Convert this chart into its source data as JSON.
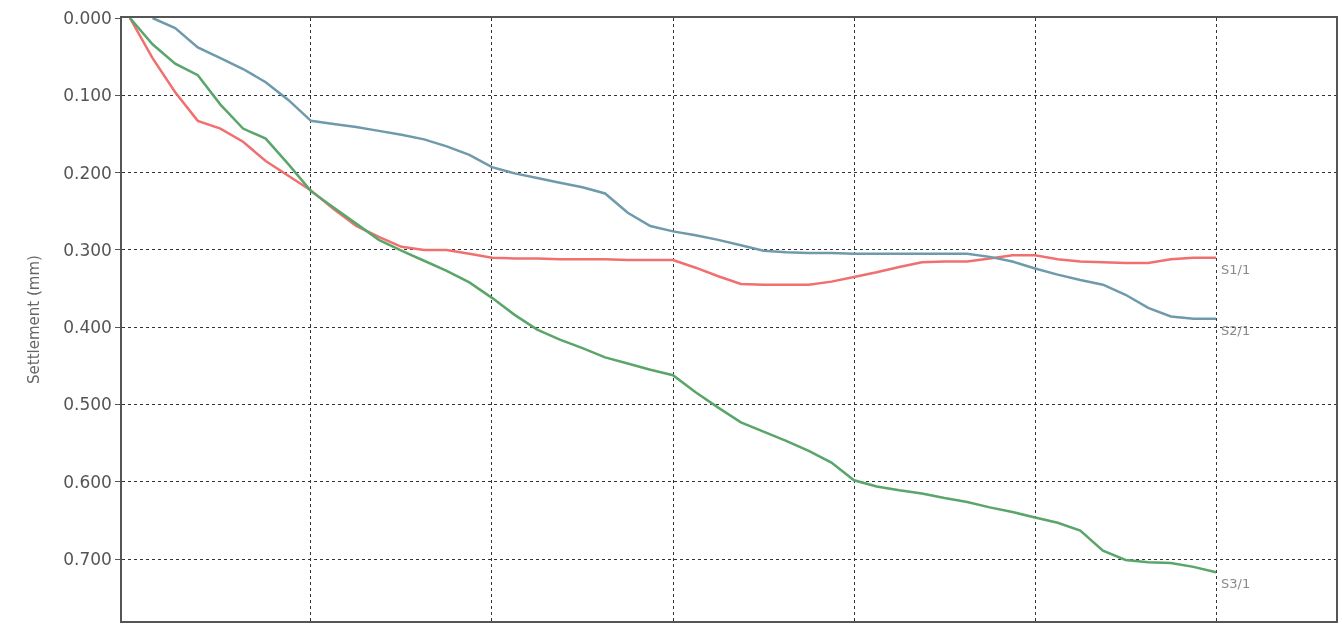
{
  "chart_data": {
    "type": "line",
    "ylabel": "Settlement (mm)",
    "categories": [
      null,
      null,
      null,
      null,
      null,
      null,
      null,
      null,
      null,
      null,
      null,
      null,
      null,
      null,
      null,
      null,
      null,
      null,
      null,
      null,
      null,
      null,
      null,
      null,
      null,
      null,
      null,
      null,
      null,
      null,
      null,
      null,
      null,
      null,
      null,
      null,
      null,
      null,
      null,
      null,
      null,
      null,
      null,
      null,
      null,
      null,
      null,
      null,
      null
    ],
    "series": [
      {
        "name": "S1/1",
        "color": "#f07070",
        "values": [
          0,
          0.052,
          0.096,
          0.133,
          0.143,
          0.16,
          0.185,
          0.204,
          0.223,
          0.247,
          0.269,
          0.283,
          0.296,
          0.3,
          0.3,
          0.305,
          0.31,
          0.311,
          0.311,
          0.312,
          0.312,
          0.312,
          0.313,
          0.313,
          0.313,
          0.323,
          0.334,
          0.344,
          0.345,
          0.345,
          0.345,
          0.341,
          0.335,
          0.329,
          0.322,
          0.316,
          0.315,
          0.315,
          0.311,
          0.307,
          0.307,
          0.312,
          0.315,
          0.316,
          0.317,
          0.317,
          0.312,
          0.31,
          0.31
        ]
      },
      {
        "name": "S2/1",
        "color": "#6f9aab",
        "values": [
          null,
          0,
          0.013,
          0.038,
          0.052,
          0.066,
          0.083,
          0.106,
          0.133,
          0.137,
          0.141,
          0.146,
          0.151,
          0.157,
          0.166,
          0.177,
          0.193,
          0.201,
          0.207,
          0.213,
          0.219,
          0.227,
          0.252,
          0.269,
          0.276,
          0.281,
          0.287,
          0.294,
          0.301,
          0.303,
          0.304,
          0.304,
          0.305,
          0.305,
          0.305,
          0.305,
          0.305,
          0.305,
          0.309,
          0.315,
          0.324,
          0.332,
          0.339,
          0.345,
          0.358,
          0.375,
          0.386,
          0.389,
          0.389
        ]
      },
      {
        "name": "S3/1",
        "color": "#5aa56a",
        "values": [
          0,
          0.034,
          0.059,
          0.074,
          0.112,
          0.143,
          0.156,
          0.189,
          0.224,
          0.245,
          0.266,
          0.287,
          0.301,
          0.314,
          0.327,
          0.342,
          0.362,
          0.384,
          0.403,
          0.416,
          0.427,
          0.439,
          0.447,
          0.455,
          0.462,
          0.484,
          0.504,
          0.523,
          0.535,
          0.547,
          0.56,
          0.575,
          0.598,
          0.606,
          0.611,
          0.615,
          0.621,
          0.626,
          0.633,
          0.639,
          0.646,
          0.653,
          0.663,
          0.689,
          0.701,
          0.704,
          0.705,
          0.71,
          0.717
        ]
      }
    ],
    "ylim": [
      0.78,
      0
    ],
    "yticks": [
      {
        "value": 0,
        "label": "0.000"
      },
      {
        "value": 0.1,
        "label": "0.100"
      },
      {
        "value": 0.2,
        "label": "0.200"
      },
      {
        "value": 0.3,
        "label": "0.300"
      },
      {
        "value": 0.4,
        "label": "0.400"
      },
      {
        "value": 0.5,
        "label": "0.500"
      },
      {
        "value": 0.6,
        "label": "0.600"
      },
      {
        "value": 0.7,
        "label": "0.700"
      }
    ],
    "grid": true,
    "legend": false,
    "tick_labels": "y",
    "marker": "none",
    "line_style": "solid"
  }
}
